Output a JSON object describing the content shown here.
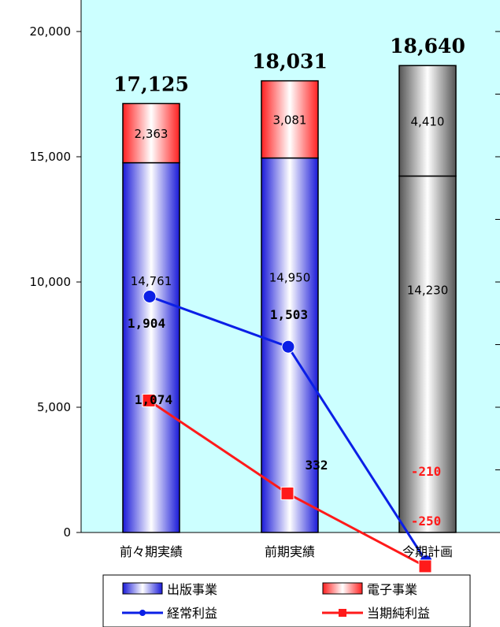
{
  "chart_data": {
    "type": "bar",
    "stacked": true,
    "categories": [
      "前々期実績",
      "前期実績",
      "今期計画"
    ],
    "ylim": [
      0,
      21000
    ],
    "yticks": [
      "0",
      "5,000",
      "10,000",
      "15,000",
      "20,000"
    ],
    "ytick_values": [
      0,
      5000,
      10000,
      15000,
      20000
    ],
    "totals": [
      "17,125",
      "18,031",
      "18,640"
    ],
    "total_values": [
      17125,
      18031,
      18640
    ],
    "series": [
      {
        "name": "出版事業",
        "values": [
          14761,
          14950,
          14230
        ],
        "labels": [
          "14,761",
          "14,950",
          "14,230"
        ]
      },
      {
        "name": "電子事業",
        "values": [
          2363,
          3081,
          4410
        ],
        "labels": [
          "2,363",
          "3,081",
          "4,410"
        ]
      }
    ],
    "line_series": [
      {
        "name": "経常利益",
        "values": [
          1904,
          1503,
          -210
        ],
        "labels": [
          "1,904",
          "1,503",
          "-210"
        ],
        "color": "#0b1fe6"
      },
      {
        "name": "当期純利益",
        "values": [
          1074,
          332,
          -250
        ],
        "labels": [
          "1,074",
          "332",
          "-250"
        ],
        "color": "#ff1a1a"
      }
    ],
    "legend": [
      "出版事業",
      "電子事業",
      "経常利益",
      "当期純利益"
    ],
    "legend_position": "bottom",
    "plot_background": "#ccffff",
    "grid": false
  }
}
